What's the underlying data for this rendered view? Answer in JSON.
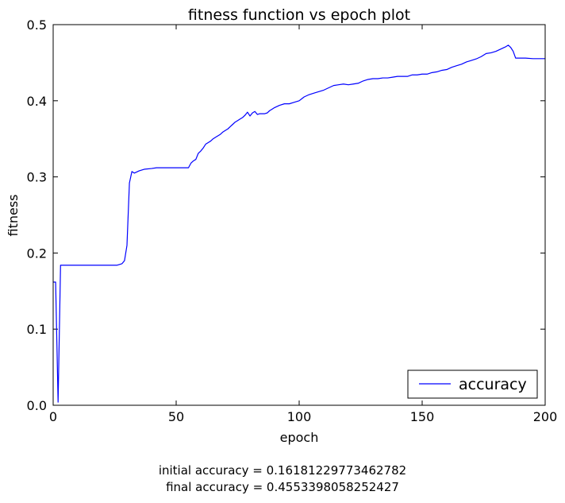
{
  "chart_data": {
    "type": "line",
    "title": "fitness function vs epoch plot",
    "xlabel": "epoch",
    "ylabel": "fitness",
    "xlim": [
      0,
      200
    ],
    "ylim": [
      0.0,
      0.5
    ],
    "xticks": [
      0,
      50,
      100,
      150,
      200
    ],
    "yticks": [
      0.0,
      0.1,
      0.2,
      0.3,
      0.4,
      0.5
    ],
    "xtick_labels": [
      "0",
      "50",
      "100",
      "150",
      "200"
    ],
    "ytick_labels": [
      "0.0",
      "0.1",
      "0.2",
      "0.3",
      "0.4",
      "0.5"
    ],
    "grid": false,
    "legend": {
      "position": "lower-right"
    },
    "series": [
      {
        "name": "accuracy",
        "color": "#0000ff",
        "x": [
          0,
          1,
          2,
          3,
          5,
          10,
          15,
          20,
          25,
          26,
          27,
          28,
          29,
          30,
          31,
          32,
          33,
          35,
          37,
          40,
          42,
          45,
          50,
          53,
          55,
          56,
          57,
          58,
          59,
          60,
          61,
          62,
          63,
          64,
          65,
          66,
          67,
          68,
          69,
          70,
          71,
          72,
          73,
          74,
          75,
          76,
          77,
          78,
          79,
          80,
          81,
          82,
          83,
          84,
          85,
          86,
          87,
          88,
          89,
          90,
          92,
          94,
          96,
          98,
          100,
          102,
          104,
          106,
          108,
          110,
          112,
          114,
          116,
          118,
          120,
          122,
          124,
          126,
          128,
          130,
          132,
          134,
          136,
          138,
          140,
          142,
          144,
          146,
          148,
          150,
          152,
          154,
          156,
          158,
          160,
          162,
          164,
          166,
          168,
          170,
          172,
          174,
          176,
          178,
          180,
          182,
          184,
          185,
          186,
          187,
          188,
          190,
          192,
          195,
          198,
          200
        ],
        "y": [
          0.1618,
          0.1618,
          0.004,
          0.184,
          0.184,
          0.184,
          0.184,
          0.184,
          0.184,
          0.184,
          0.185,
          0.186,
          0.19,
          0.21,
          0.292,
          0.307,
          0.305,
          0.308,
          0.31,
          0.311,
          0.312,
          0.312,
          0.312,
          0.312,
          0.312,
          0.318,
          0.321,
          0.323,
          0.331,
          0.334,
          0.338,
          0.343,
          0.345,
          0.347,
          0.35,
          0.352,
          0.354,
          0.356,
          0.359,
          0.361,
          0.363,
          0.366,
          0.369,
          0.372,
          0.374,
          0.376,
          0.378,
          0.381,
          0.385,
          0.38,
          0.384,
          0.386,
          0.382,
          0.383,
          0.383,
          0.383,
          0.384,
          0.387,
          0.389,
          0.391,
          0.394,
          0.396,
          0.396,
          0.398,
          0.4,
          0.405,
          0.408,
          0.41,
          0.412,
          0.414,
          0.417,
          0.42,
          0.421,
          0.422,
          0.421,
          0.422,
          0.423,
          0.426,
          0.428,
          0.429,
          0.429,
          0.43,
          0.43,
          0.431,
          0.432,
          0.432,
          0.432,
          0.434,
          0.434,
          0.435,
          0.435,
          0.437,
          0.438,
          0.44,
          0.441,
          0.444,
          0.446,
          0.448,
          0.451,
          0.453,
          0.455,
          0.458,
          0.462,
          0.463,
          0.465,
          0.468,
          0.471,
          0.473,
          0.47,
          0.465,
          0.456,
          0.456,
          0.456,
          0.4553,
          0.4553,
          0.4553
        ]
      }
    ]
  },
  "captions": {
    "initial": "initial accuracy = 0.16181229773462782",
    "final": "final accuracy = 0.4553398058252427"
  }
}
